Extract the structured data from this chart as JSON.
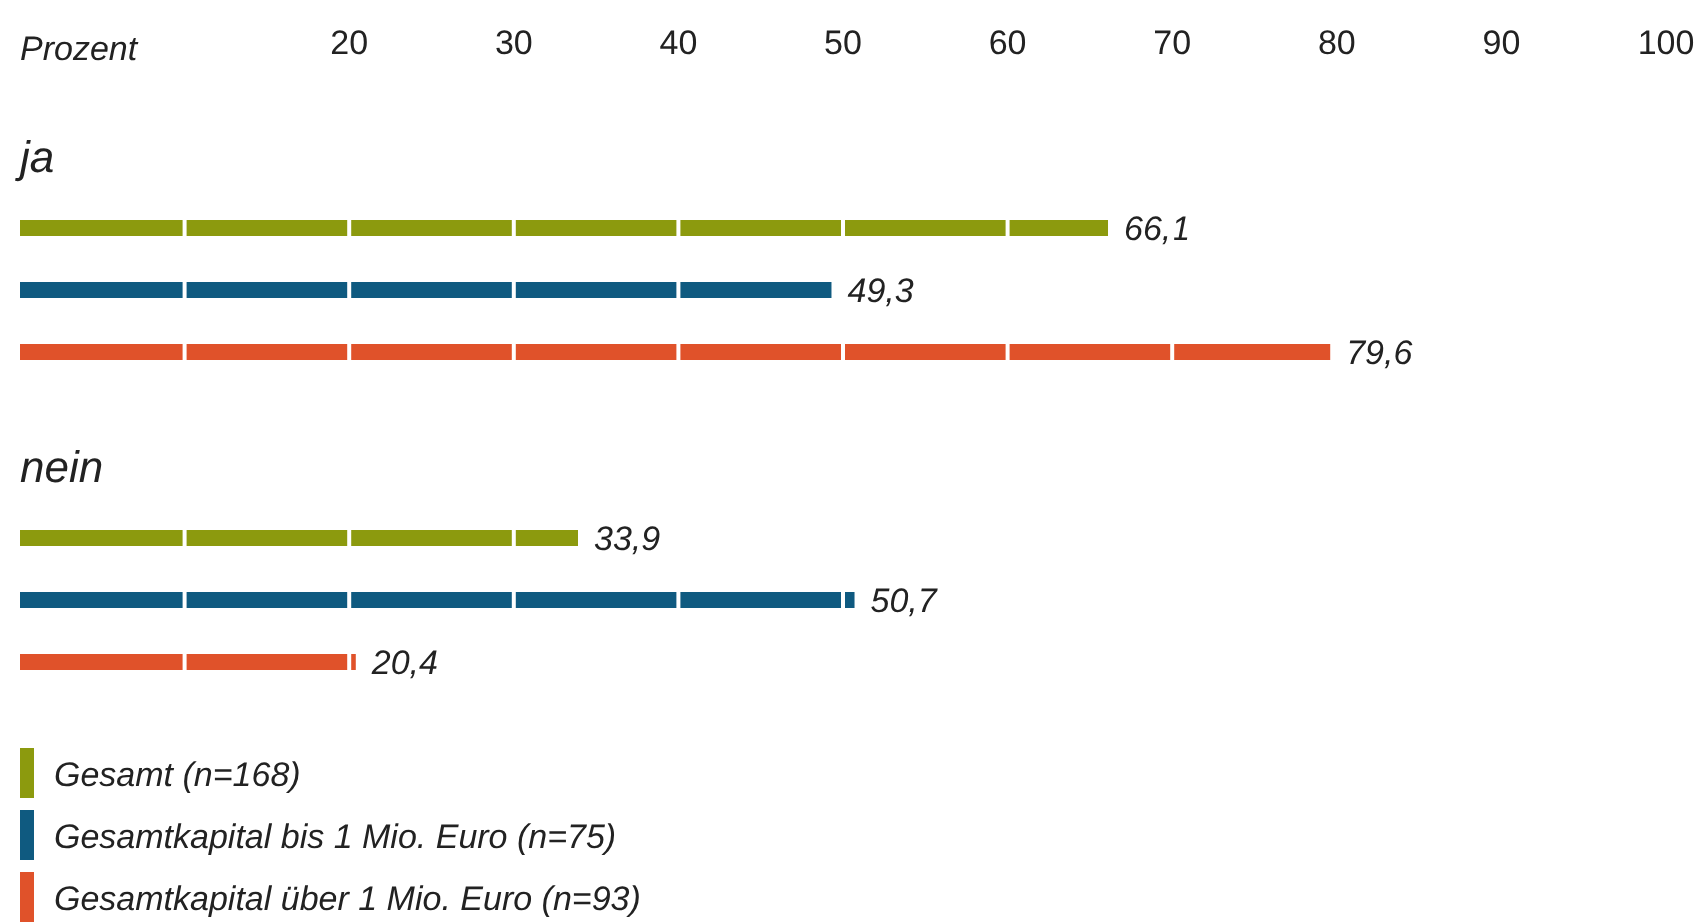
{
  "chart_data": {
    "type": "bar",
    "orientation": "horizontal",
    "xlabel": "Prozent",
    "categories": [
      "ja",
      "nein"
    ],
    "series": [
      {
        "name": "Gesamt (n=168)",
        "color": "#8c9a0e",
        "values": [
          66.1,
          33.9
        ],
        "value_labels": [
          "66,1",
          "33,9"
        ]
      },
      {
        "name": "Gesamtkapital bis 1 Mio. Euro (n=75)",
        "color": "#0f5a80",
        "values": [
          49.3,
          50.7
        ],
        "value_labels": [
          "49,3",
          "50,7"
        ]
      },
      {
        "name": "Gesamtkapital über 1 Mio. Euro (n=93)",
        "color": "#e0522a",
        "values": [
          79.6,
          20.4
        ],
        "value_labels": [
          "79,6",
          "20,4"
        ]
      }
    ],
    "xlim": [
      0,
      100
    ],
    "xticks": [
      {
        "value": 10,
        "label": null
      },
      20,
      30,
      40,
      50,
      60,
      70,
      80,
      90,
      100
    ],
    "grid": "x",
    "legend": "bottom left"
  }
}
